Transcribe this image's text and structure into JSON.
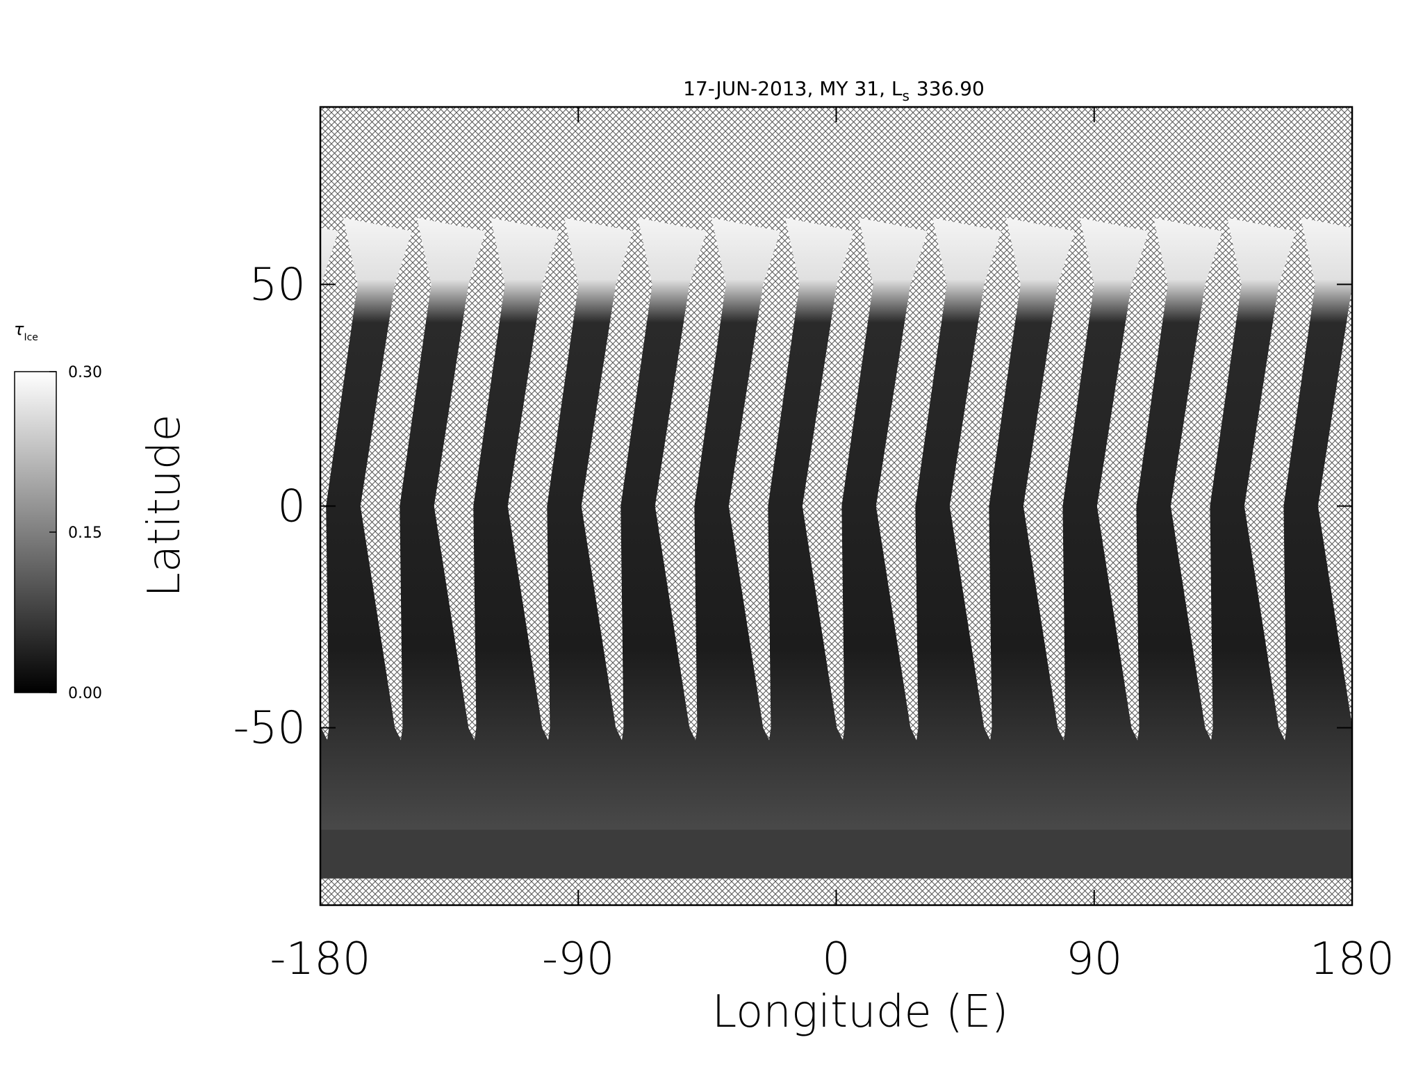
{
  "chart_data": {
    "type": "map",
    "title": "17-JUN-2013, MY 31,  L",
    "title_subscript": "s",
    "title_value": "336.90",
    "x_label": "Longitude (E)",
    "y_label": "Latitude",
    "xlim": [
      -180,
      180
    ],
    "ylim": [
      -90,
      90
    ],
    "xticks": [
      -180,
      -90,
      0,
      90,
      180
    ],
    "yticks": [
      -50,
      0,
      50
    ],
    "colorbar": {
      "label": "τ",
      "label_subscript": "Ice",
      "lim": [
        0,
        0.3
      ],
      "ticks": [
        {
          "value": 0,
          "label": "0.00"
        },
        {
          "value": 0.15,
          "label": "0.15"
        },
        {
          "value": 0.3,
          "label": "0.30"
        }
      ]
    }
  }
}
